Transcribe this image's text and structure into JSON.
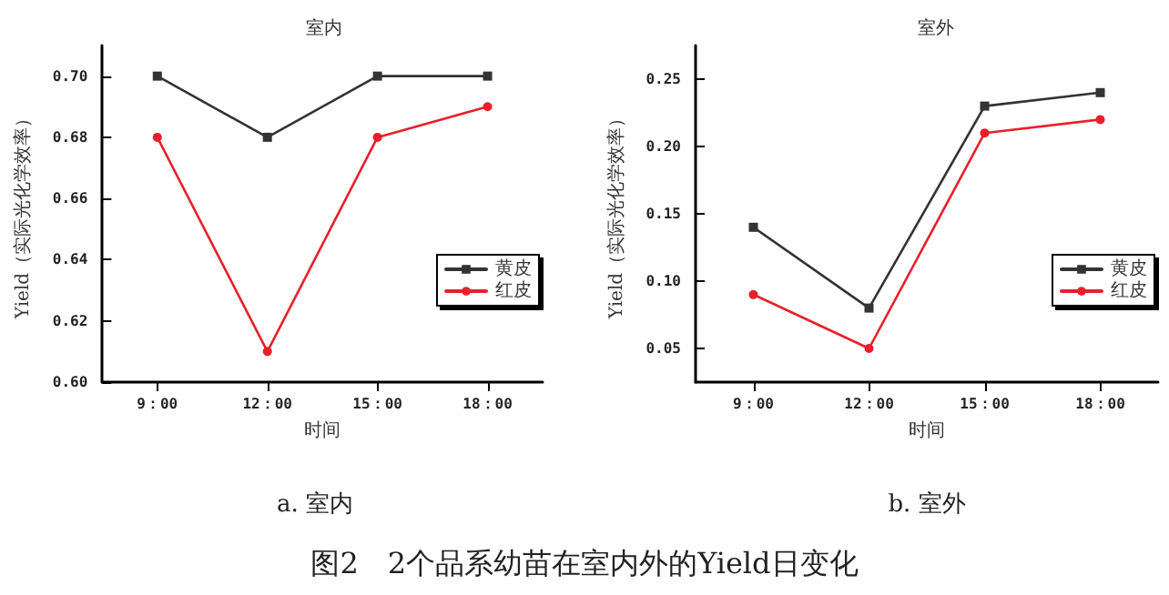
{
  "chart_data": [
    {
      "type": "line",
      "title": "室内",
      "xlabel": "时间",
      "ylabel": "Yield（实际光化学效率）",
      "categories": [
        "9：00",
        "12：00",
        "15：00",
        "18：00"
      ],
      "series": [
        {
          "name": "黄皮",
          "color": "#333333",
          "marker": "square",
          "values": [
            0.7,
            0.68,
            0.7,
            0.7
          ]
        },
        {
          "name": "红皮",
          "color": "#e8202a",
          "marker": "circle",
          "values": [
            0.68,
            0.61,
            0.68,
            0.69
          ]
        }
      ],
      "ylim": [
        0.6,
        0.71
      ],
      "yticks": [
        {
          "value": 0.6,
          "label": "0.60"
        },
        {
          "value": 0.62,
          "label": "0.62"
        },
        {
          "value": 0.64,
          "label": "0.64"
        },
        {
          "value": 0.66,
          "label": "0.66"
        },
        {
          "value": 0.68,
          "label": "0.68"
        },
        {
          "value": 0.7,
          "label": "0.70"
        }
      ],
      "grid": false,
      "legend": "right",
      "line_style": "solid",
      "annotations": [
        "a. 室内",
        "图2　2个品系幼苗在室内外的Yield日变化"
      ]
    },
    {
      "type": "line",
      "title": "室外",
      "xlabel": "时间",
      "ylabel": "Yield（实际光化学效率）",
      "categories": [
        "9：00",
        "12：00",
        "15：00",
        "18：00"
      ],
      "series": [
        {
          "name": "黄皮",
          "color": "#333333",
          "marker": "square",
          "values": [
            0.14,
            0.08,
            0.23,
            0.24
          ]
        },
        {
          "name": "红皮",
          "color": "#e8202a",
          "marker": "circle",
          "values": [
            0.09,
            0.05,
            0.21,
            0.22
          ]
        }
      ],
      "ylim": [
        0.025,
        0.275
      ],
      "yticks": [
        {
          "value": 0.05,
          "label": "0.05"
        },
        {
          "value": 0.1,
          "label": "0.10"
        },
        {
          "value": 0.15,
          "label": "0.15"
        },
        {
          "value": 0.2,
          "label": "0.20"
        },
        {
          "value": 0.25,
          "label": "0.25"
        }
      ],
      "grid": false,
      "legend": "right",
      "line_style": "solid",
      "annotations": [
        "b. 室外"
      ]
    }
  ]
}
